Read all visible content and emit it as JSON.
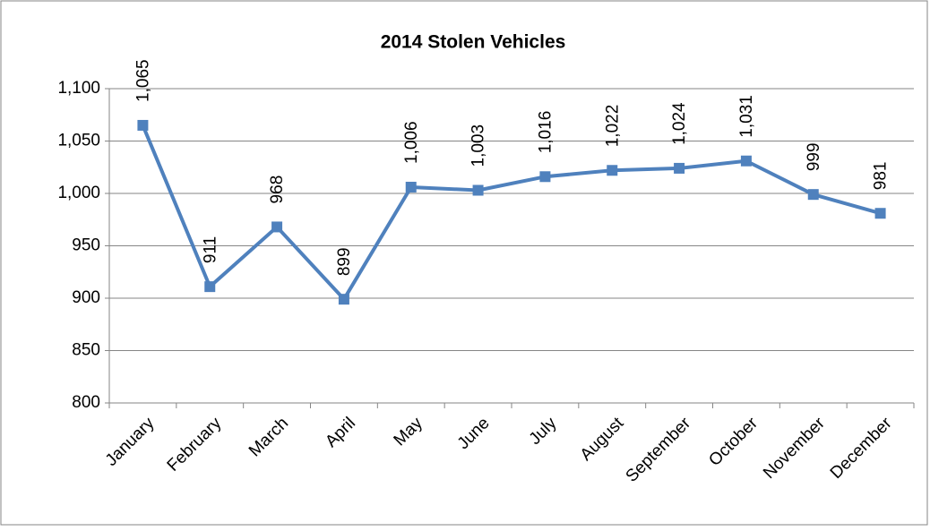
{
  "chart_data": {
    "type": "line",
    "title": "2014 Stolen Vehicles",
    "categories": [
      "January",
      "February",
      "March",
      "April",
      "May",
      "June",
      "July",
      "August",
      "September",
      "October",
      "November",
      "December"
    ],
    "series": [
      {
        "name": "2014 Stolen Vehicles",
        "color": "#4f81bd",
        "values": [
          1065,
          911,
          968,
          899,
          1006,
          1003,
          1016,
          1022,
          1024,
          1031,
          999,
          981
        ],
        "value_labels": [
          "1,065",
          "911",
          "968",
          "899",
          "1,006",
          "1,003",
          "1,016",
          "1,022",
          "1,024",
          "1,031",
          "999",
          "981"
        ]
      }
    ],
    "ylim": [
      800,
      1100
    ],
    "yticks": [
      800,
      850,
      900,
      950,
      {
        "value": 1000,
        "label": "1,000"
      },
      {
        "value": 1050,
        "label": "1,050"
      },
      {
        "value": 1100,
        "label": "1,100"
      }
    ],
    "grid": true
  }
}
